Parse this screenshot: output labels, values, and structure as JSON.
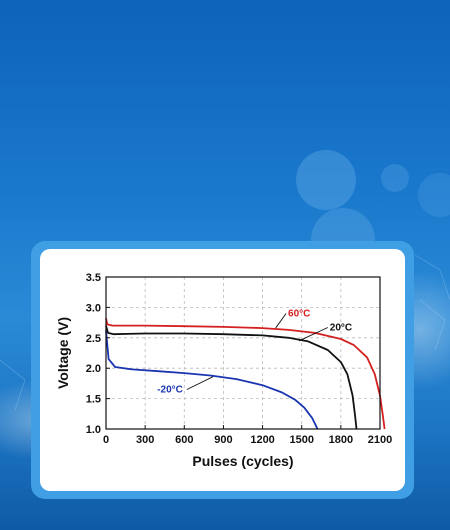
{
  "theme": {
    "background": "#1a78cc",
    "card_border": "#3f9ee4",
    "panel": "#ffffff"
  },
  "chart_data": {
    "type": "line",
    "title": "",
    "xlabel": "Pulses (cycles)",
    "ylabel": "Voltage (V)",
    "xlim": [
      0,
      2100
    ],
    "ylim": [
      1.0,
      3.5
    ],
    "xticks": [
      0,
      300,
      600,
      900,
      1200,
      1500,
      1800,
      2100
    ],
    "yticks": [
      1.0,
      1.5,
      2.0,
      2.5,
      3.0,
      3.5
    ],
    "xtick_labels": [
      "0",
      "300",
      "600",
      "900",
      "1200",
      "1500",
      "1800",
      "2100"
    ],
    "ytick_labels": [
      "1.0",
      "1.5",
      "2.0",
      "2.5",
      "3.0",
      "3.5"
    ],
    "grid": true,
    "series": [
      {
        "name": "60°C",
        "color": "#d42020",
        "points": [
          [
            0,
            2.82
          ],
          [
            10,
            2.72
          ],
          [
            50,
            2.7
          ],
          [
            300,
            2.7
          ],
          [
            600,
            2.69
          ],
          [
            900,
            2.68
          ],
          [
            1200,
            2.66
          ],
          [
            1400,
            2.63
          ],
          [
            1600,
            2.58
          ],
          [
            1800,
            2.48
          ],
          [
            1900,
            2.38
          ],
          [
            2000,
            2.18
          ],
          [
            2060,
            1.9
          ],
          [
            2100,
            1.55
          ],
          [
            2120,
            1.25
          ],
          [
            2135,
            1.0
          ]
        ]
      },
      {
        "name": "20°C",
        "color": "#111111",
        "points": [
          [
            0,
            2.7
          ],
          [
            15,
            2.58
          ],
          [
            60,
            2.56
          ],
          [
            300,
            2.57
          ],
          [
            600,
            2.57
          ],
          [
            900,
            2.56
          ],
          [
            1200,
            2.54
          ],
          [
            1400,
            2.5
          ],
          [
            1550,
            2.44
          ],
          [
            1700,
            2.3
          ],
          [
            1800,
            2.1
          ],
          [
            1850,
            1.9
          ],
          [
            1890,
            1.55
          ],
          [
            1910,
            1.2
          ],
          [
            1920,
            1.0
          ]
        ]
      },
      {
        "name": "-20°C",
        "color": "#1a35b0",
        "points": [
          [
            0,
            2.62
          ],
          [
            20,
            2.15
          ],
          [
            70,
            2.02
          ],
          [
            200,
            1.98
          ],
          [
            400,
            1.95
          ],
          [
            600,
            1.92
          ],
          [
            800,
            1.88
          ],
          [
            1000,
            1.82
          ],
          [
            1200,
            1.72
          ],
          [
            1350,
            1.6
          ],
          [
            1450,
            1.48
          ],
          [
            1520,
            1.35
          ],
          [
            1580,
            1.18
          ],
          [
            1610,
            1.05
          ],
          [
            1620,
            1.0
          ]
        ]
      }
    ]
  }
}
